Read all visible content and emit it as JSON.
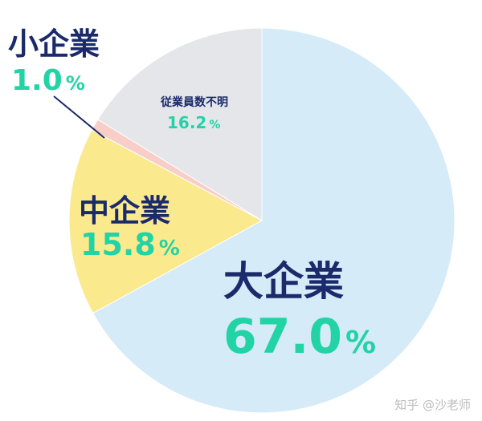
{
  "chart_data": {
    "type": "pie",
    "title": "",
    "slices": [
      {
        "label": "大企業",
        "value": 67.0,
        "display": "67.0",
        "unit": "%",
        "color": "#d5ebf8"
      },
      {
        "label": "中企業",
        "value": 15.8,
        "display": "15.8",
        "unit": "%",
        "color": "#fbe98e"
      },
      {
        "label": "小企業",
        "value": 1.0,
        "display": "1.0",
        "unit": "%",
        "color": "#f8cfc8"
      },
      {
        "label": "従業員数不明",
        "value": 16.2,
        "display": "16.2",
        "unit": "%",
        "color": "#e4e6ea"
      }
    ],
    "start": "12 o'clock, clockwise",
    "label_color": "#1b2a6b",
    "value_color": "#22d3a5"
  },
  "watermark": "知乎 @沙老师"
}
